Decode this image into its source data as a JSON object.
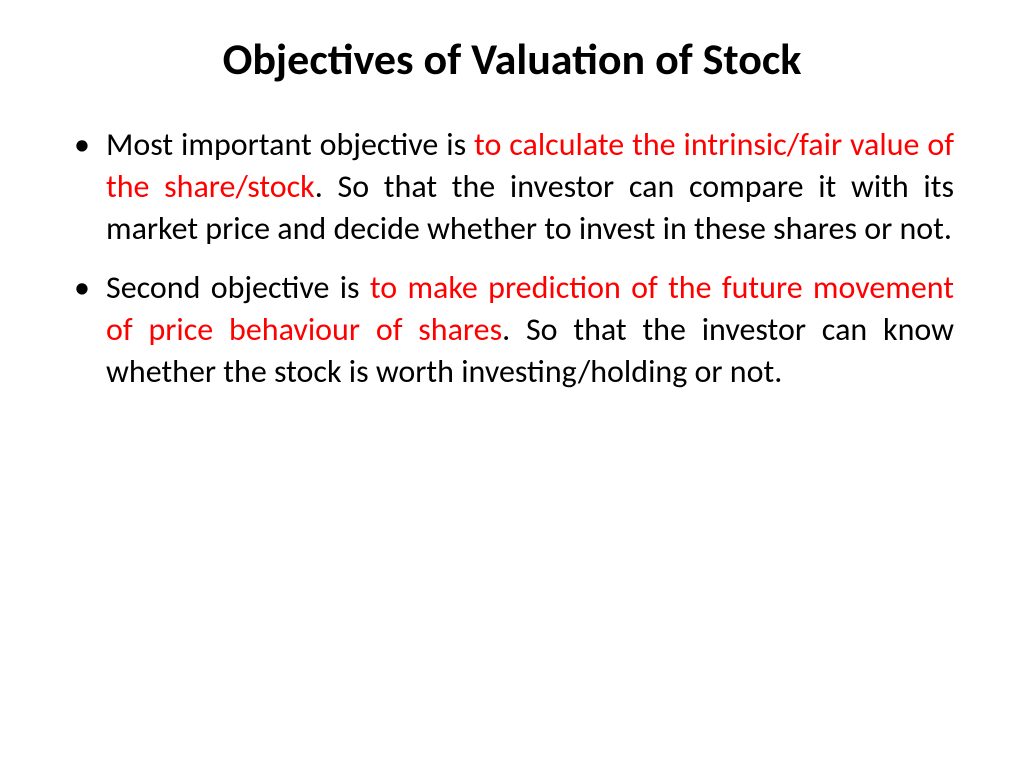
{
  "slide": {
    "title": "Objectives of Valuation of Stock",
    "bullets": [
      {
        "pre": "Most important objective is ",
        "highlight": "to calculate the intrinsic/fair value of the share/stock",
        "post": ". So that the investor can compare it with its market price and decide whether to invest in these shares or not."
      },
      {
        "pre": "Second objective is ",
        "highlight": "to make prediction of the future movement of price behaviour of shares",
        "post": ". So that the investor can know whether the stock is worth investing/holding or not."
      }
    ]
  },
  "style": {
    "background_color": "#ffffff",
    "title_color": "#000000",
    "title_fontsize": 44,
    "title_fontweight": 700,
    "body_color": "#000000",
    "highlight_color": "#ff0000",
    "body_fontsize": 32,
    "line_height": 1.32,
    "text_align": "justify",
    "bullet_char": "•",
    "font_family": "Calibri"
  }
}
